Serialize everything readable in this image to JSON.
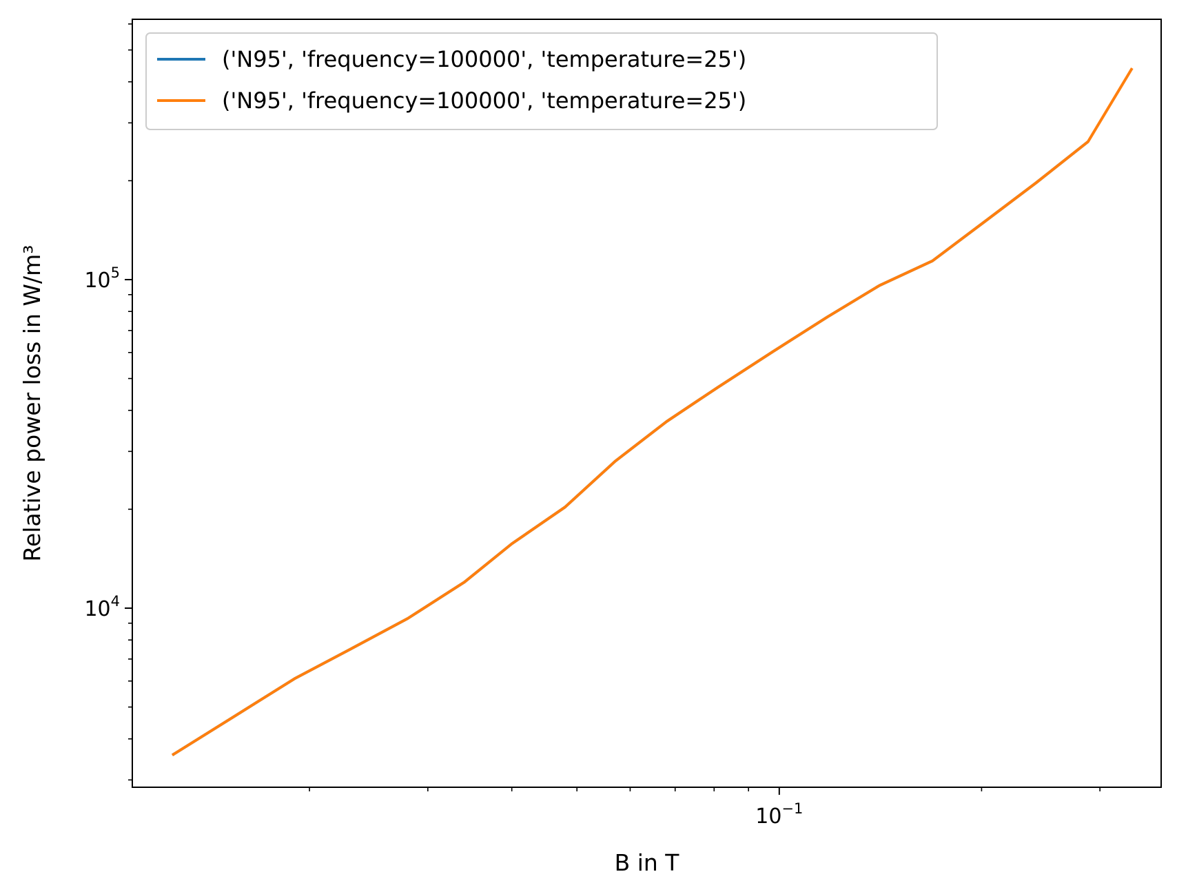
{
  "chart_data": {
    "type": "line",
    "xlabel": "B in T",
    "ylabel": "Relative power loss in W/m³",
    "xscale": "log",
    "yscale": "log",
    "xlim": [
      0.0109,
      0.37
    ],
    "ylim": [
      2850,
      620000
    ],
    "grid": false,
    "legend_position": "top-left",
    "x_major_ticks": [
      {
        "value": 0.1,
        "base": "10",
        "exp": "−1"
      }
    ],
    "y_major_ticks": [
      {
        "value": 10000,
        "base": "10",
        "exp": "4"
      },
      {
        "value": 100000,
        "base": "10",
        "exp": "5"
      }
    ],
    "x_minor_ticks": [
      0.02,
      0.03,
      0.04,
      0.05,
      0.06,
      0.07,
      0.08,
      0.09,
      0.2,
      0.3
    ],
    "y_minor_ticks": [
      3000,
      4000,
      5000,
      6000,
      7000,
      8000,
      9000,
      20000,
      30000,
      40000,
      50000,
      60000,
      70000,
      80000,
      90000,
      200000,
      300000,
      400000,
      500000,
      600000
    ],
    "series": [
      {
        "name": "('N95', 'frequency=100000', 'temperature=25')",
        "color": "#1f77b4",
        "x": [
          0.0125,
          0.0155,
          0.019,
          0.023,
          0.028,
          0.034,
          0.04,
          0.048,
          0.057,
          0.068,
          0.081,
          0.098,
          0.118,
          0.141,
          0.169,
          0.202,
          0.241,
          0.288
        ],
        "y": [
          3570,
          4700,
          6100,
          7500,
          9300,
          12000,
          15700,
          20300,
          28000,
          37000,
          47000,
          60500,
          77000,
          96000,
          114000,
          150000,
          197000,
          263000
        ]
      },
      {
        "name": "('N95', 'frequency=100000', 'temperature=25')",
        "color": "#ff7f0e",
        "x": [
          0.0125,
          0.0155,
          0.019,
          0.023,
          0.028,
          0.034,
          0.04,
          0.048,
          0.057,
          0.068,
          0.081,
          0.098,
          0.118,
          0.141,
          0.169,
          0.202,
          0.241,
          0.288,
          0.335
        ],
        "y": [
          3570,
          4700,
          6100,
          7500,
          9300,
          12000,
          15700,
          20300,
          28000,
          37000,
          47000,
          60500,
          77000,
          96000,
          114000,
          150000,
          197000,
          263000,
          440000
        ]
      }
    ]
  }
}
